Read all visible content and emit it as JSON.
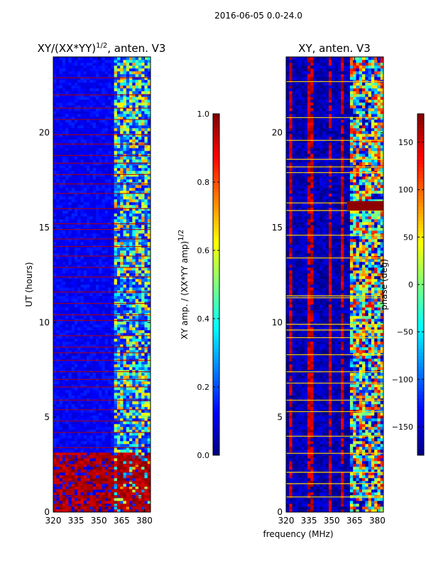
{
  "chart_data": {
    "suptitle": "2016-06-05 0.0-24.0",
    "colormap": "jet",
    "panels": [
      {
        "type": "heatmap",
        "title": "XY/(XX*YY)",
        "title_sup": "1/2",
        "title_suffix": ", anten. V3",
        "xlim": [
          320,
          384
        ],
        "ylim": [
          0,
          24
        ],
        "xticks": [
          320,
          335,
          350,
          365,
          380
        ],
        "yticks": [
          0,
          5,
          10,
          15,
          20
        ],
        "xticklabels": [
          "320",
          "335",
          "350",
          "365",
          "380"
        ],
        "yticklabels": [
          "0",
          "5",
          "10",
          "15",
          "20"
        ],
        "ylabel": "UT (hours)",
        "xlabel": "",
        "colorbar": {
          "range": [
            0.0,
            1.0
          ],
          "ticks": [
            0.0,
            0.2,
            0.4,
            0.6,
            0.8,
            1.0
          ],
          "ticklabels": [
            "0.0",
            "0.2",
            "0.4",
            "0.6",
            "0.8",
            "1.0"
          ],
          "label": "XY amp. / (XX*YY amp)",
          "label_sup": "1/2"
        },
        "features": {
          "background_value": 0.12,
          "active_band_mhz": [
            360,
            384
          ],
          "active_band_value_range": [
            0.2,
            0.75
          ],
          "saturated_hours": [
            [
              0.0,
              3.2
            ]
          ],
          "saturated_value": 1.0,
          "flag_hours": [
            0.3,
            0.8,
            1.2,
            1.6,
            2.1,
            2.5,
            2.9,
            3.4,
            4.2,
            4.8,
            5.4,
            5.9,
            6.6,
            7.0,
            7.4,
            8.0,
            8.4,
            8.7,
            9.3,
            10.1,
            10.4,
            11.0,
            11.6,
            12.4,
            12.9,
            13.5,
            14.0,
            14.4,
            14.9,
            15.2,
            16.0,
            16.8,
            17.3,
            17.8,
            18.4,
            18.8,
            19.4,
            19.9,
            20.7,
            21.3,
            22.0,
            22.9
          ],
          "flag_value": 0.95
        }
      },
      {
        "type": "heatmap",
        "title": "XY, anten. V3",
        "xlim": [
          320,
          384
        ],
        "ylim": [
          0,
          24
        ],
        "xticks": [
          320,
          335,
          350,
          365,
          380
        ],
        "yticks": [
          0,
          5,
          10,
          15,
          20
        ],
        "xticklabels": [
          "320",
          "335",
          "350",
          "365",
          "380"
        ],
        "yticklabels": [
          "0",
          "5",
          "10",
          "15",
          "20"
        ],
        "ylabel": "",
        "xlabel": "frequency (MHz)",
        "colorbar": {
          "range": [
            -180,
            180
          ],
          "ticks": [
            -150,
            -100,
            -50,
            0,
            50,
            100,
            150
          ],
          "ticklabels": [
            "−150",
            "−100",
            "−50",
            "0",
            "50",
            "100",
            "150"
          ],
          "label": "phase (deg)"
        },
        "features": {
          "background_value": -160,
          "red_stripes_mhz": [
            323,
            336,
            349,
            357
          ],
          "stripe_value": 175,
          "active_band_mhz": [
            362,
            384
          ],
          "horizontal_lines_hours": [
            0.8,
            1.5,
            2.1,
            3.1,
            4.0,
            5.3,
            5.9,
            6.8,
            7.4,
            8.3,
            9.2,
            9.6,
            9.9,
            11.3,
            11.4,
            13.4,
            14.6,
            15.9,
            16.3,
            17.9,
            18.2,
            18.6,
            19.6,
            20.8,
            22.7
          ],
          "line_value": 60,
          "red_band_hours": [
            [
              15.9,
              16.4
            ]
          ]
        }
      }
    ]
  }
}
